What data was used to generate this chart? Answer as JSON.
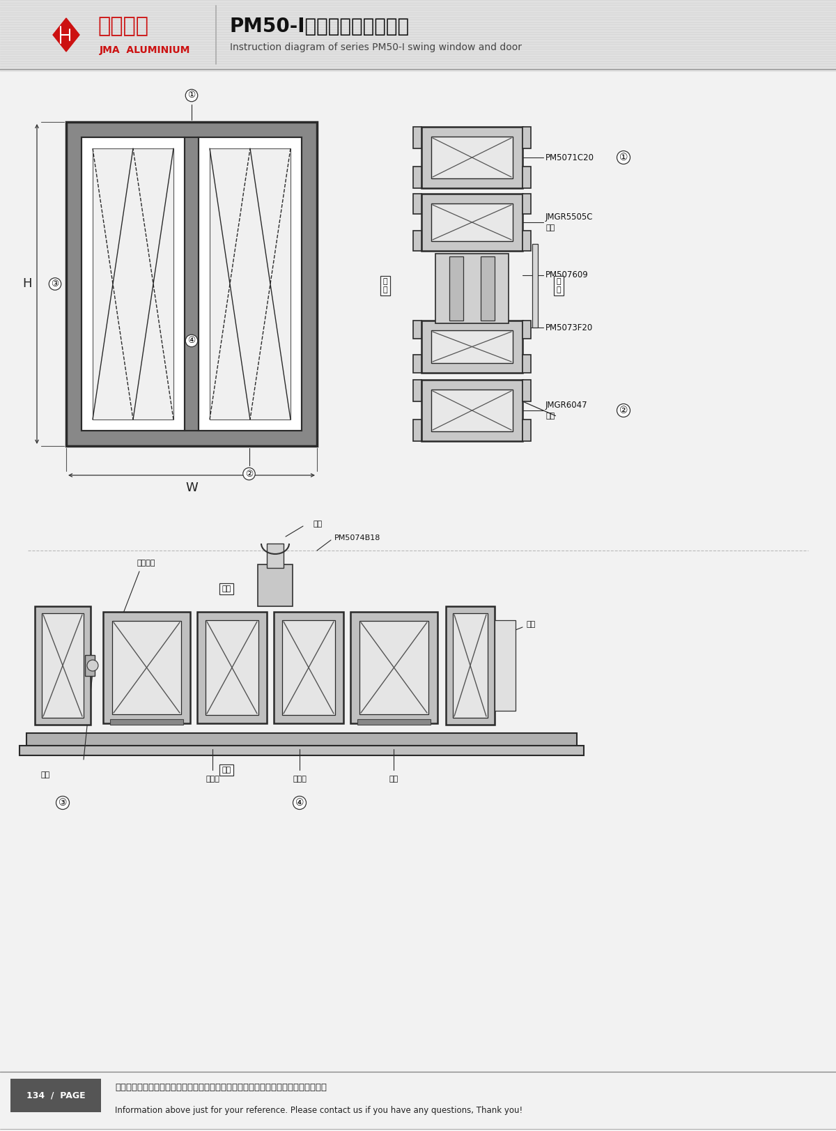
{
  "title_cn": "PM50-I系列平开门窗结构图",
  "title_en": "Instruction diagram of series PM50-I swing window and door",
  "page_num": "134 / PAGE",
  "footer_cn": "图中所示型材截面、装配、编号、尺寸及重量仅供参考。如有疑问，请向本公司查询。",
  "footer_en": "Information above just for your reference. Please contact us if you have any questions, Thank you!",
  "company_cn": "坚美铝业",
  "company_en": "JMA  ALUMINIUM",
  "bg_color": "#f2f2f2",
  "white": "#ffffff",
  "gray_frame": "#787878",
  "gray_mid": "#909090",
  "dark_line": "#2a2a2a",
  "red_color": "#cc1111"
}
